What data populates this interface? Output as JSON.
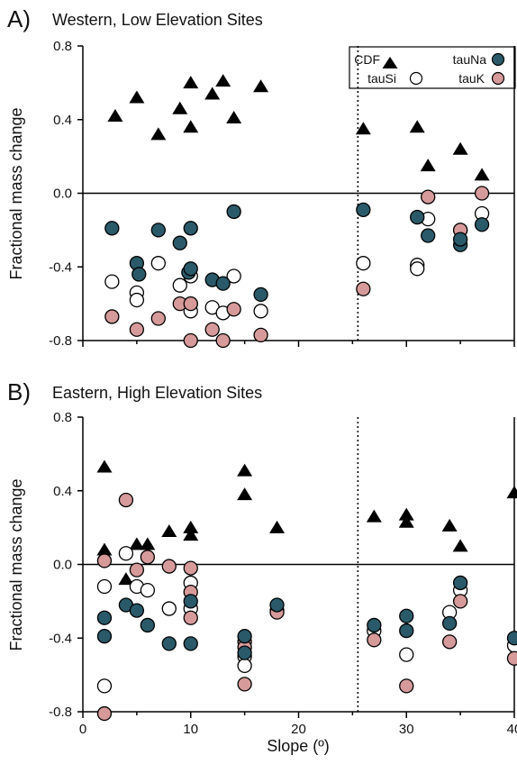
{
  "colors": {
    "cdf": "#000000",
    "tauNa": "#2a5a6a",
    "tauSi": "#ffffff",
    "tauK": "#d79a9a",
    "axis": "#000000"
  },
  "xlabel": "Slope (º)",
  "legend": {
    "items": [
      {
        "key": "cdf",
        "label": "CDF",
        "marker": "triangle"
      },
      {
        "key": "tauNa",
        "label": "tauNa",
        "marker": "circle"
      },
      {
        "key": "tauSi",
        "label": "tauSi",
        "marker": "circle"
      },
      {
        "key": "tauK",
        "label": "tauK",
        "marker": "circle"
      }
    ]
  },
  "chart_data": [
    {
      "type": "scatter",
      "panel_label": "A)",
      "title": "Western, Low Elevation Sites",
      "xlabel": "",
      "ylabel": "Fractional mass change",
      "xlim": [
        0,
        40
      ],
      "ylim": [
        -0.8,
        0.8
      ],
      "xticks": [],
      "yticks": [
        "0.8",
        "0.4",
        "0.0",
        "-0.4",
        "-0.8"
      ],
      "reference_line_x": 25.5,
      "legend_placement": "top-right",
      "series": [
        {
          "name": "CDF",
          "key": "cdf",
          "points": [
            [
              3,
              0.42
            ],
            [
              5,
              0.52
            ],
            [
              7,
              0.32
            ],
            [
              9,
              0.46
            ],
            [
              10,
              0.6
            ],
            [
              10,
              0.36
            ],
            [
              12,
              0.54
            ],
            [
              13,
              0.61
            ],
            [
              14,
              0.41
            ],
            [
              16.5,
              0.58
            ],
            [
              26,
              0.35
            ],
            [
              31,
              0.36
            ],
            [
              32,
              0.15
            ],
            [
              35,
              0.24
            ],
            [
              37,
              0.1
            ]
          ]
        },
        {
          "name": "tauNa",
          "key": "tauNa",
          "points": [
            [
              2.7,
              -0.19
            ],
            [
              5,
              -0.38
            ],
            [
              5.2,
              -0.44
            ],
            [
              7,
              -0.2
            ],
            [
              9,
              -0.27
            ],
            [
              9.8,
              -0.43
            ],
            [
              10,
              -0.19
            ],
            [
              10,
              -0.41
            ],
            [
              12,
              -0.47
            ],
            [
              13,
              -0.49
            ],
            [
              14,
              -0.1
            ],
            [
              16.5,
              -0.55
            ],
            [
              26,
              -0.09
            ],
            [
              31,
              -0.13
            ],
            [
              32,
              -0.23
            ],
            [
              35,
              -0.28
            ],
            [
              35,
              -0.25
            ],
            [
              37,
              -0.17
            ]
          ]
        },
        {
          "name": "tauSi",
          "key": "tauSi",
          "points": [
            [
              2.7,
              -0.48
            ],
            [
              5,
              -0.54
            ],
            [
              5,
              -0.58
            ],
            [
              7,
              -0.38
            ],
            [
              9,
              -0.5
            ],
            [
              10,
              -0.45
            ],
            [
              10,
              -0.6
            ],
            [
              10,
              -0.64
            ],
            [
              12,
              -0.62
            ],
            [
              13,
              -0.65
            ],
            [
              14,
              -0.45
            ],
            [
              16.5,
              -0.64
            ],
            [
              26,
              -0.38
            ],
            [
              31,
              -0.39
            ],
            [
              31,
              -0.41
            ],
            [
              32,
              -0.14
            ],
            [
              35,
              -0.2
            ],
            [
              37,
              -0.11
            ]
          ]
        },
        {
          "name": "tauK",
          "key": "tauK",
          "points": [
            [
              2.7,
              -0.67
            ],
            [
              5,
              -0.74
            ],
            [
              7,
              -0.68
            ],
            [
              9,
              -0.6
            ],
            [
              10,
              -0.6
            ],
            [
              10,
              -0.8
            ],
            [
              12,
              -0.74
            ],
            [
              13,
              -0.8
            ],
            [
              14,
              -0.63
            ],
            [
              16.5,
              -0.77
            ],
            [
              26,
              -0.52
            ],
            [
              32,
              -0.02
            ],
            [
              35,
              -0.2
            ],
            [
              37,
              0.0
            ]
          ]
        }
      ]
    },
    {
      "type": "scatter",
      "panel_label": "B)",
      "title": "Eastern, High Elevation Sites",
      "xlabel": "Slope (º)",
      "ylabel": "Fractional mass change",
      "xlim": [
        0,
        40
      ],
      "ylim": [
        -0.8,
        0.8
      ],
      "xticks": [
        "0",
        "10",
        "20",
        "30",
        "40"
      ],
      "yticks": [
        "0.8",
        "0.4",
        "0.0",
        "-0.4",
        "-0.8"
      ],
      "reference_line_x": 25.5,
      "series": [
        {
          "name": "CDF",
          "key": "cdf",
          "points": [
            [
              2,
              0.53
            ],
            [
              2,
              0.08
            ],
            [
              4,
              -0.08
            ],
            [
              5,
              0.11
            ],
            [
              6,
              0.11
            ],
            [
              8,
              0.18
            ],
            [
              10,
              0.2
            ],
            [
              10,
              0.16
            ],
            [
              15,
              0.51
            ],
            [
              15,
              0.38
            ],
            [
              18,
              0.2
            ],
            [
              27,
              0.26
            ],
            [
              30,
              0.27
            ],
            [
              30,
              0.23
            ],
            [
              34,
              0.21
            ],
            [
              35,
              0.1
            ],
            [
              40,
              0.39
            ]
          ]
        },
        {
          "name": "tauNa",
          "key": "tauNa",
          "points": [
            [
              2,
              -0.29
            ],
            [
              2,
              -0.39
            ],
            [
              4,
              -0.22
            ],
            [
              5,
              -0.25
            ],
            [
              6,
              -0.33
            ],
            [
              8,
              -0.43
            ],
            [
              10,
              -0.2
            ],
            [
              10,
              -0.43
            ],
            [
              15,
              -0.39
            ],
            [
              15,
              -0.48
            ],
            [
              18,
              -0.22
            ],
            [
              27,
              -0.33
            ],
            [
              30,
              -0.28
            ],
            [
              30,
              -0.36
            ],
            [
              34,
              -0.32
            ],
            [
              35,
              -0.1
            ],
            [
              40,
              -0.4
            ]
          ]
        },
        {
          "name": "tauSi",
          "key": "tauSi",
          "points": [
            [
              2,
              -0.12
            ],
            [
              2,
              -0.66
            ],
            [
              4,
              0.06
            ],
            [
              5,
              -0.12
            ],
            [
              6,
              -0.14
            ],
            [
              8,
              -0.24
            ],
            [
              10,
              -0.1
            ],
            [
              10,
              -0.24
            ],
            [
              15,
              -0.5
            ],
            [
              15,
              -0.55
            ],
            [
              18,
              -0.25
            ],
            [
              27,
              -0.36
            ],
            [
              30,
              -0.49
            ],
            [
              34,
              -0.26
            ],
            [
              35,
              -0.14
            ],
            [
              40,
              -0.44
            ]
          ]
        },
        {
          "name": "tauK",
          "key": "tauK",
          "points": [
            [
              2,
              0.02
            ],
            [
              2,
              -0.81
            ],
            [
              4,
              0.35
            ],
            [
              5,
              -0.03
            ],
            [
              6,
              0.04
            ],
            [
              8,
              -0.01
            ],
            [
              10,
              -0.02
            ],
            [
              10,
              -0.15
            ],
            [
              10,
              -0.29
            ],
            [
              15,
              -0.42
            ],
            [
              15,
              -0.45
            ],
            [
              15,
              -0.65
            ],
            [
              18,
              -0.26
            ],
            [
              27,
              -0.41
            ],
            [
              30,
              -0.66
            ],
            [
              34,
              -0.42
            ],
            [
              35,
              -0.2
            ],
            [
              40,
              -0.51
            ]
          ]
        }
      ]
    }
  ]
}
